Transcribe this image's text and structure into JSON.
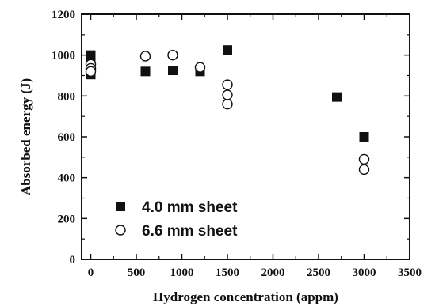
{
  "chart_data": {
    "type": "scatter",
    "title": "",
    "xlabel": "Hydrogen concentration (appm)",
    "ylabel": "Absorbed energy (J)",
    "xlim": [
      -100,
      3500
    ],
    "ylim": [
      0,
      1200
    ],
    "xticks": [
      0,
      500,
      1000,
      1500,
      2000,
      2500,
      3000,
      3500
    ],
    "yticks": [
      0,
      200,
      400,
      600,
      800,
      1000,
      1200
    ],
    "legend_position": "lower-left",
    "series": [
      {
        "name": "4.0 mm sheet",
        "marker": "filled-square",
        "color": "#111111",
        "points": [
          {
            "x": 0,
            "y": 1000
          },
          {
            "x": 0,
            "y": 965
          },
          {
            "x": 0,
            "y": 940
          },
          {
            "x": 0,
            "y": 905
          },
          {
            "x": 600,
            "y": 920
          },
          {
            "x": 900,
            "y": 925
          },
          {
            "x": 1200,
            "y": 920
          },
          {
            "x": 1500,
            "y": 1025
          },
          {
            "x": 2700,
            "y": 795
          },
          {
            "x": 3000,
            "y": 600
          }
        ]
      },
      {
        "name": "6.6 mm sheet",
        "marker": "open-circle",
        "color": "#111111",
        "points": [
          {
            "x": 0,
            "y": 955
          },
          {
            "x": 0,
            "y": 935
          },
          {
            "x": 0,
            "y": 920
          },
          {
            "x": 600,
            "y": 995
          },
          {
            "x": 900,
            "y": 1000
          },
          {
            "x": 1200,
            "y": 940
          },
          {
            "x": 1500,
            "y": 855
          },
          {
            "x": 1500,
            "y": 805
          },
          {
            "x": 1500,
            "y": 760
          },
          {
            "x": 3000,
            "y": 490
          },
          {
            "x": 3000,
            "y": 440
          }
        ]
      }
    ]
  }
}
